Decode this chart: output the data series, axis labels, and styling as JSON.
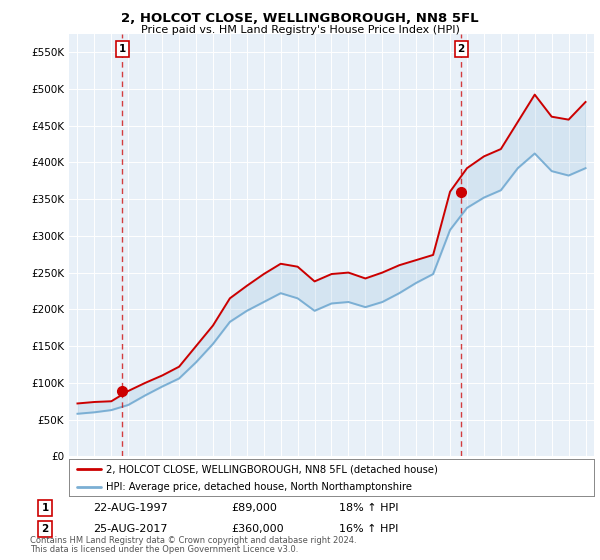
{
  "title": "2, HOLCOT CLOSE, WELLINGBOROUGH, NN8 5FL",
  "subtitle": "Price paid vs. HM Land Registry's House Price Index (HPI)",
  "legend_line1": "2, HOLCOT CLOSE, WELLINGBOROUGH, NN8 5FL (detached house)",
  "legend_line2": "HPI: Average price, detached house, North Northamptonshire",
  "footnote1": "Contains HM Land Registry data © Crown copyright and database right 2024.",
  "footnote2": "This data is licensed under the Open Government Licence v3.0.",
  "sale1_label": "1",
  "sale1_date": "22-AUG-1997",
  "sale1_price": 89000,
  "sale1_price_str": "£89,000",
  "sale1_hpi": "18% ↑ HPI",
  "sale2_label": "2",
  "sale2_date": "25-AUG-2017",
  "sale2_price": 360000,
  "sale2_price_str": "£360,000",
  "sale2_hpi": "16% ↑ HPI",
  "red_line_color": "#cc0000",
  "blue_line_color": "#7bafd4",
  "vline_color": "#cc0000",
  "plot_bg": "#e8f0f8",
  "grid_color": "#ffffff",
  "years": [
    1995,
    1996,
    1997,
    1998,
    1999,
    2000,
    2001,
    2002,
    2003,
    2004,
    2005,
    2006,
    2007,
    2008,
    2009,
    2010,
    2011,
    2012,
    2013,
    2014,
    2015,
    2016,
    2017,
    2018,
    2019,
    2020,
    2021,
    2022,
    2023,
    2024,
    2025
  ],
  "red_values": [
    72000,
    74000,
    75000,
    89000,
    100000,
    110000,
    122000,
    150000,
    178000,
    215000,
    232000,
    248000,
    262000,
    258000,
    238000,
    248000,
    250000,
    242000,
    250000,
    260000,
    267000,
    274000,
    360000,
    392000,
    408000,
    418000,
    455000,
    492000,
    462000,
    458000,
    482000
  ],
  "blue_values": [
    58000,
    60000,
    63000,
    70000,
    83000,
    95000,
    106000,
    128000,
    153000,
    183000,
    198000,
    210000,
    222000,
    215000,
    198000,
    208000,
    210000,
    203000,
    210000,
    222000,
    236000,
    248000,
    308000,
    338000,
    352000,
    362000,
    392000,
    412000,
    388000,
    382000,
    392000
  ],
  "ylim_min": 0,
  "ylim_max": 575000,
  "yticks": [
    0,
    50000,
    100000,
    150000,
    200000,
    250000,
    300000,
    350000,
    400000,
    450000,
    500000,
    550000
  ],
  "ytick_labels": [
    "£0",
    "£50K",
    "£100K",
    "£150K",
    "£200K",
    "£250K",
    "£300K",
    "£350K",
    "£400K",
    "£450K",
    "£500K",
    "£550K"
  ],
  "sale1_year": 1997.65,
  "sale2_year": 2017.65,
  "xlim_min": 1994.5,
  "xlim_max": 2025.5
}
